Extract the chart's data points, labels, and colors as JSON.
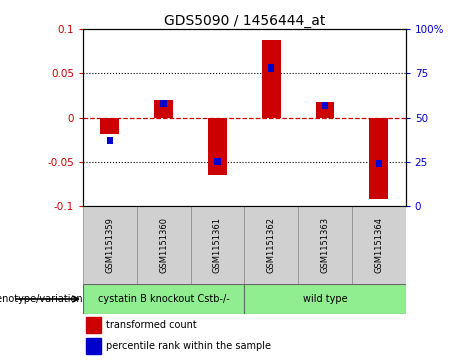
{
  "title": "GDS5090 / 1456444_at",
  "samples": [
    "GSM1151359",
    "GSM1151360",
    "GSM1151361",
    "GSM1151362",
    "GSM1151363",
    "GSM1151364"
  ],
  "red_values": [
    -0.018,
    0.02,
    -0.065,
    0.088,
    0.018,
    -0.092
  ],
  "blue_values_pct": [
    37,
    58,
    25,
    78,
    57,
    24
  ],
  "group_colors": [
    "#c8c8c8",
    "#90EE90"
  ],
  "group1_label": "cystatin B knockout Cstb-/-",
  "group2_label": "wild type",
  "genotype_label": "genotype/variation",
  "ylim": [
    -0.1,
    0.1
  ],
  "y_ticks_left": [
    -0.1,
    -0.05,
    0,
    0.05,
    0.1
  ],
  "y_ticks_right": [
    0,
    25,
    50,
    75,
    100
  ],
  "left_color": "#cc0000",
  "right_color": "#0000cc",
  "zero_line_color": "#cc0000",
  "bar_width": 0.35,
  "blue_bar_width": 0.12,
  "blue_bar_height": 0.008,
  "legend_red_label": "transformed count",
  "legend_blue_label": "percentile rank within the sample",
  "sample_box_color": "#d0d0d0",
  "title_fontsize": 10,
  "tick_fontsize": 7.5,
  "sample_fontsize": 6,
  "group_fontsize": 7,
  "legend_fontsize": 7
}
